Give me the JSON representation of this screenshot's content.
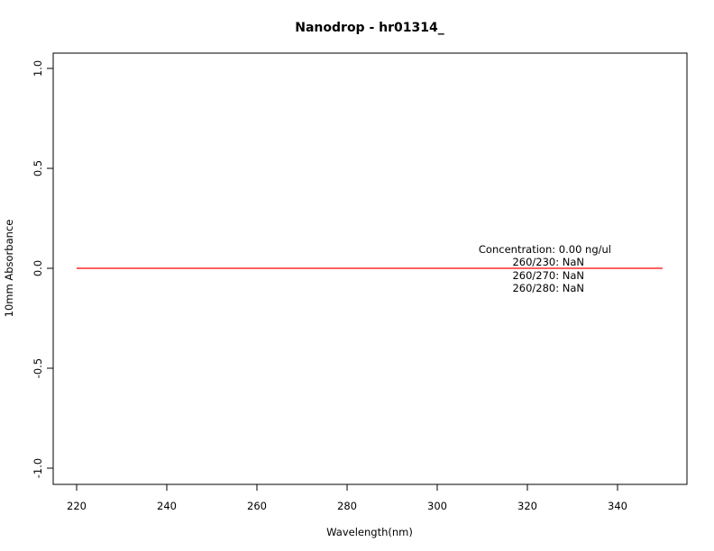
{
  "chart_data": {
    "type": "line",
    "title": "Nanodrop - hr01314_",
    "xlabel": "Wavelength(nm)",
    "ylabel": "10mm Absorbance",
    "xlim": [
      220,
      350
    ],
    "ylim": [
      -1.0,
      1.0
    ],
    "xticks": [
      220,
      240,
      260,
      280,
      300,
      320,
      340
    ],
    "yticks": [
      -1.0,
      -0.5,
      0.0,
      0.5,
      1.0
    ],
    "ytick_labels": [
      "-1.0",
      "-0.5",
      "0.0",
      "0.5",
      "1.0"
    ],
    "grid": false,
    "series": [
      {
        "color": "#ff0000",
        "x": [
          220,
          350
        ],
        "y": [
          0.0,
          0.0
        ]
      }
    ],
    "annotations": [
      "Concentration: 0.00 ng/ul",
      "260/230: NaN",
      "260/270: NaN",
      "260/280: NaN"
    ]
  }
}
